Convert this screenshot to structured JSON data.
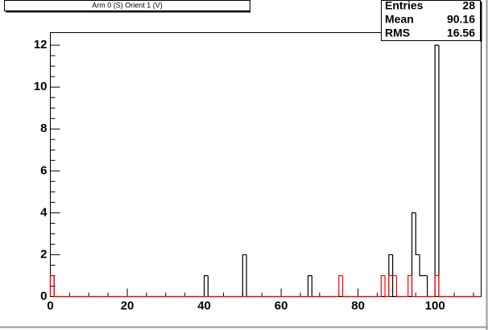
{
  "chart_data": {
    "type": "histogram",
    "title": "Arm 0 (S) Orient 1 (V)",
    "bins": [
      0,
      1,
      2,
      3,
      4,
      5,
      6,
      7,
      8,
      9,
      10,
      11,
      12,
      13,
      14,
      15,
      16,
      17,
      18,
      19,
      20,
      21,
      22,
      23,
      24,
      25,
      26,
      27,
      28,
      29,
      30,
      31,
      32,
      33,
      34,
      35,
      36,
      37,
      38,
      39,
      40,
      41,
      42,
      43,
      44,
      45,
      46,
      47,
      48,
      49,
      50,
      51,
      52,
      53,
      54,
      55,
      56,
      57,
      58,
      59,
      60,
      61,
      62,
      63,
      64,
      65,
      66,
      67,
      68,
      69,
      70,
      71,
      72,
      73,
      74,
      75,
      76,
      77,
      78,
      79,
      80,
      81,
      82,
      83,
      84,
      85,
      86,
      87,
      88,
      89,
      90,
      91,
      92,
      93,
      94,
      95,
      96,
      97,
      98,
      99,
      100,
      101,
      102,
      103,
      104,
      105,
      106,
      107,
      108,
      109,
      110,
      111,
      112
    ],
    "series": [
      {
        "color": "#000000",
        "values": [
          1,
          0,
          0,
          0,
          0,
          0,
          0,
          0,
          0,
          0,
          0,
          0,
          0,
          0,
          0,
          0,
          0,
          0,
          0,
          0,
          0,
          0,
          0,
          0,
          0,
          0,
          0,
          0,
          0,
          0,
          0,
          0,
          0,
          0,
          0,
          0,
          0,
          0,
          0,
          0,
          1,
          0,
          0,
          0,
          0,
          0,
          0,
          0,
          0,
          0,
          2,
          0,
          0,
          0,
          0,
          0,
          0,
          0,
          0,
          0,
          0,
          0,
          0,
          0,
          0,
          0,
          0,
          1,
          0,
          0,
          0,
          0,
          0,
          0,
          0,
          0,
          0,
          0,
          0,
          0,
          0,
          0,
          0,
          0,
          0,
          0,
          0,
          0,
          2,
          0,
          0,
          0,
          0,
          0,
          4,
          2,
          1,
          1,
          0,
          0,
          12,
          0,
          0,
          0,
          0,
          0,
          0,
          0,
          0,
          0,
          0,
          0
        ]
      },
      {
        "color": "#ff0000",
        "values": [
          1,
          0,
          0,
          0,
          0,
          0,
          0,
          0,
          0,
          0,
          0,
          0,
          0,
          0,
          0,
          0,
          0,
          0,
          0,
          0,
          0,
          0,
          0,
          0,
          0,
          0,
          0,
          0,
          0,
          0,
          0,
          0,
          0,
          0,
          0,
          0,
          0,
          0,
          0,
          0,
          0,
          0,
          0,
          0,
          0,
          0,
          0,
          0,
          0,
          0,
          0,
          0,
          0,
          0,
          0,
          0,
          0,
          0,
          0,
          0,
          0,
          0,
          0,
          0,
          0,
          0,
          0,
          0,
          0,
          0,
          0,
          0,
          0,
          0,
          0,
          1,
          0,
          0,
          0,
          0,
          0,
          0,
          0,
          0,
          0,
          0,
          1,
          0,
          1,
          1,
          0,
          0,
          0,
          1,
          0,
          0,
          0,
          0,
          0,
          0,
          1,
          0,
          0,
          0,
          0,
          0,
          0,
          0,
          0,
          0,
          0,
          0
        ]
      }
    ],
    "xlim": [
      0,
      112
    ],
    "ylim": [
      0,
      12.6
    ],
    "xticks": [
      0,
      20,
      40,
      60,
      80,
      100
    ],
    "yticks": [
      0,
      2,
      4,
      6,
      8,
      10,
      12
    ],
    "stats": [
      {
        "label": "Entries",
        "value": "28"
      },
      {
        "label": "Mean",
        "value": "90.16"
      },
      {
        "label": "RMS",
        "value": "16.56"
      }
    ]
  }
}
